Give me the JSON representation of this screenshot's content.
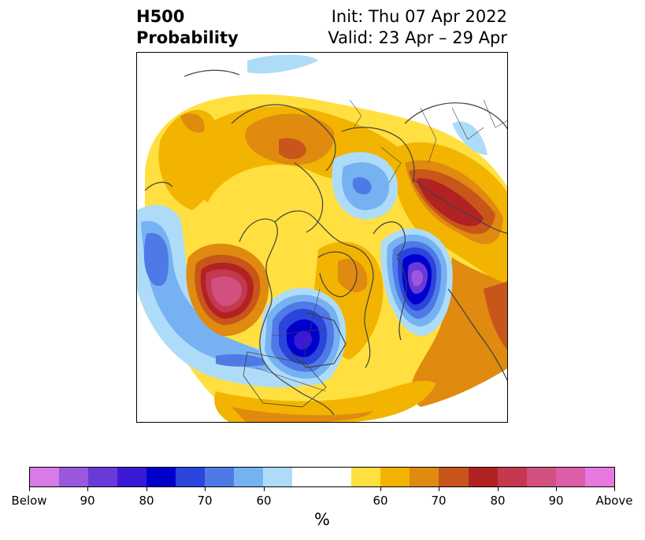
{
  "header": {
    "title_line1": "H500",
    "title_line2": "Probability",
    "init": "Init: Thu 07 Apr 2022",
    "valid": "Valid: 23 Apr – 29 Apr"
  },
  "colorbar": {
    "unit": "%",
    "tick_labels": [
      "Below",
      "90",
      "80",
      "70",
      "60",
      "60",
      "70",
      "80",
      "90",
      "Above"
    ],
    "colors": [
      "#d77be6",
      "#9b57de",
      "#6a3ad8",
      "#3a1ad6",
      "#0000cc",
      "#2a44dc",
      "#4f7ae6",
      "#76b2f2",
      "#aedcf8",
      "#ffffff",
      "#ffe040",
      "#f2b400",
      "#e08a10",
      "#c8561a",
      "#b22222",
      "#c43850",
      "#d25080",
      "#dc5ea8",
      "#e678e0"
    ]
  },
  "map": {
    "projection": "north-polar-stereographic",
    "anomaly_colors": {
      "above_60": "#ffe040",
      "above_65": "#f2b400",
      "above_70": "#e08a10",
      "above_75": "#c8561a",
      "above_80": "#b22222",
      "above_85": "#c43850",
      "above_90": "#d25080",
      "above_95": "#dc5ea8",
      "below_60": "#aedcf8",
      "below_65": "#76b2f2",
      "below_70": "#4f7ae6",
      "below_75": "#2a44dc",
      "below_80": "#0000cc",
      "below_85": "#3a1ad6",
      "below_90": "#6a3ad8",
      "below_95": "#9b57de"
    },
    "coastline_color": "#404040"
  }
}
